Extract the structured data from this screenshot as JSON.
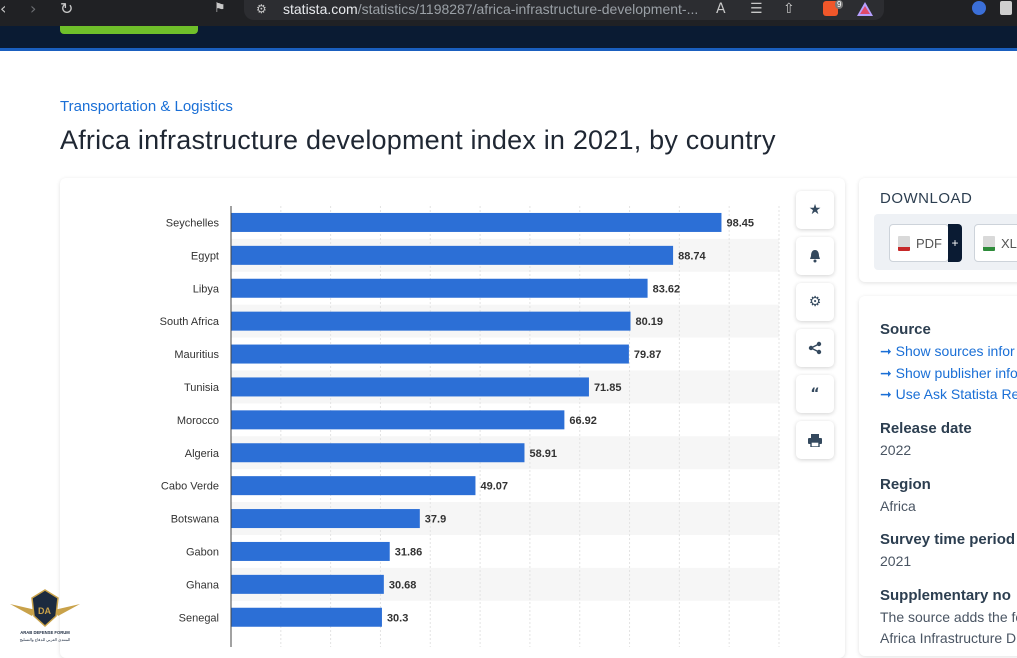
{
  "browser": {
    "url_host": "statista.com",
    "url_path": "/statistics/1198287/africa-infrastructure-development-...",
    "extension_badge": "9"
  },
  "page": {
    "breadcrumb": "Transportation & Logistics",
    "title": "Africa infrastructure development index in 2021, by country"
  },
  "download": {
    "title": "DOWNLOAD",
    "pdf_label": "PDF",
    "plus_label": "+",
    "xls_label": "XL"
  },
  "meta": {
    "source_heading": "Source",
    "source_links": [
      "Show sources infor",
      "Show publisher info",
      "Use Ask Statista Re"
    ],
    "release_heading": "Release date",
    "release_value": "2022",
    "region_heading": "Region",
    "region_value": "Africa",
    "survey_heading": "Survey time period",
    "survey_value": "2021",
    "supp_heading": "Supplementary no",
    "supp_text_1": "The source adds the fo",
    "supp_text_2": "Africa Infrastructure D"
  },
  "side_actions": [
    "star-icon",
    "bell-icon",
    "gear-icon",
    "share-icon",
    "quote-icon",
    "print-icon"
  ],
  "watermark": {
    "line1": "ARAB DEFENSE FORUM",
    "line2": "المنتدى العربي للدفاع والتسليح"
  },
  "colors": {
    "bar": "#2c6fd6",
    "header": "#0a1b33",
    "accent_green": "#6fbf2a",
    "link": "#1a6fd6"
  },
  "chart_data": {
    "type": "bar",
    "orientation": "horizontal",
    "categories": [
      "Seychelles",
      "Egypt",
      "Libya",
      "South Africa",
      "Mauritius",
      "Tunisia",
      "Morocco",
      "Algeria",
      "Cabo Verde",
      "Botswana",
      "Gabon",
      "Ghana",
      "Senegal"
    ],
    "values": [
      98.45,
      88.74,
      83.62,
      80.19,
      79.87,
      71.85,
      66.92,
      58.91,
      49.07,
      37.9,
      31.86,
      30.68,
      30.3
    ],
    "value_labels": [
      "98.45",
      "88.74",
      "83.62",
      "80.19",
      "79.87",
      "71.85",
      "66.92",
      "58.91",
      "49.07",
      "37.9",
      "31.86",
      "30.68",
      "30.3"
    ],
    "title": "",
    "xlabel": "",
    "ylabel": "",
    "xlim": [
      0,
      110
    ],
    "grid": true,
    "legend": "none"
  }
}
